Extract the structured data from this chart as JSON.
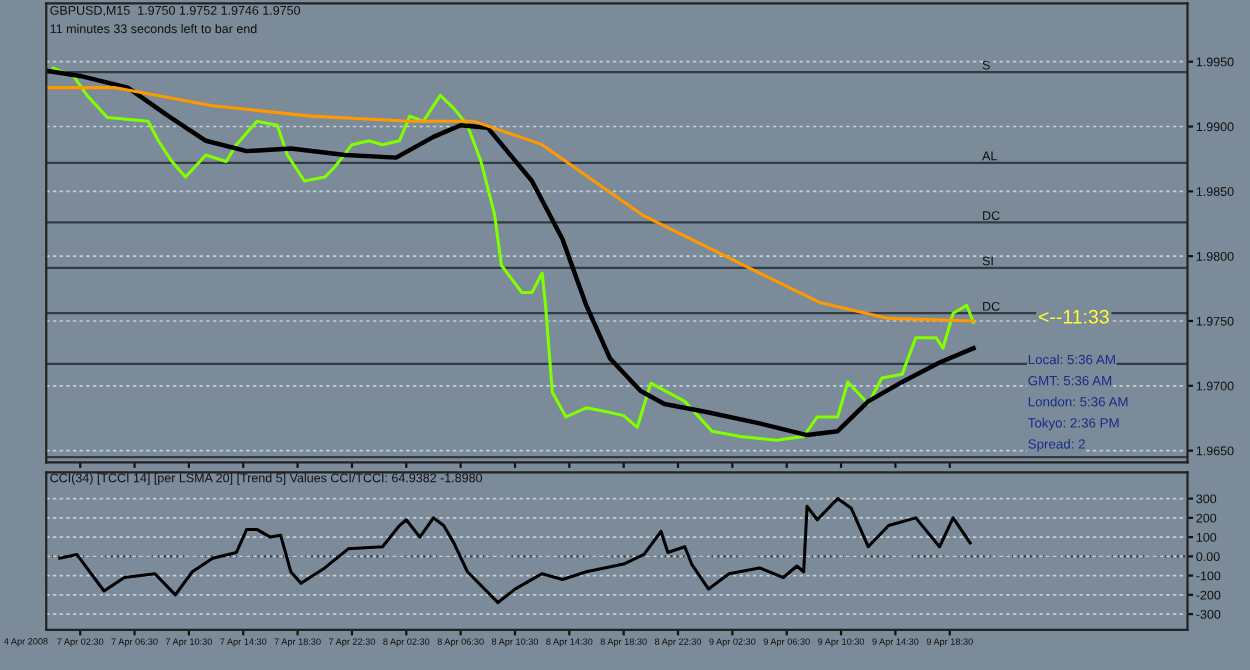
{
  "chart_data": [
    {
      "type": "line",
      "title": "GBPUSD,M15  1.9750 1.9752 1.9746 1.9750",
      "subtitle": "11 minutes 33 seconds left to bar end",
      "series": [
        {
          "color": "#7fff00",
          "x": [
            "2008-04-07T00:30",
            "2008-04-07T02:00",
            "2008-04-07T03:00",
            "2008-04-07T04:30",
            "2008-04-07T07:30",
            "2008-04-07T08:15",
            "2008-04-07T09:15",
            "2008-04-07T10:15",
            "2008-04-07T11:45",
            "2008-04-07T13:15",
            "2008-04-07T14:00",
            "2008-04-07T15:30",
            "2008-04-07T17:00",
            "2008-04-07T17:45",
            "2008-04-07T19:00",
            "2008-04-07T20:30",
            "2008-04-07T21:15",
            "2008-04-07T22:30",
            "2008-04-07T23:45",
            "2008-04-08T00:45",
            "2008-04-08T02:00",
            "2008-04-08T02:45",
            "2008-04-08T03:45",
            "2008-04-08T05:00",
            "2008-04-08T06:00",
            "2008-04-08T07:00",
            "2008-04-08T08:00",
            "2008-04-08T09:00",
            "2008-04-08T09:30",
            "2008-04-08T11:00",
            "2008-04-08T11:45",
            "2008-04-08T12:30",
            "2008-04-08T12:45",
            "2008-04-08T13:15",
            "2008-04-08T14:15",
            "2008-04-08T15:45",
            "2008-04-08T17:15",
            "2008-04-08T18:30",
            "2008-04-08T19:30",
            "2008-04-08T20:30",
            "2008-04-08T23:00",
            "2008-04-09T01:00",
            "2008-04-09T03:00",
            "2008-04-09T05:45",
            "2008-04-09T07:45",
            "2008-04-09T08:45",
            "2008-04-09T10:15",
            "2008-04-09T11:00",
            "2008-04-09T12:30",
            "2008-04-09T13:30",
            "2008-04-09T15:00",
            "2008-04-09T16:00",
            "2008-04-09T17:30",
            "2008-04-09T18:00",
            "2008-04-09T18:45",
            "2008-04-09T19:45",
            "2008-04-09T20:15"
          ],
          "values": [
            1.9945,
            1.9939,
            1.9924,
            1.9907,
            1.9904,
            1.9889,
            1.9873,
            1.9861,
            1.9878,
            1.9873,
            1.9886,
            1.9904,
            1.9901,
            1.9878,
            1.9858,
            1.9861,
            1.9869,
            1.9886,
            1.9889,
            1.9886,
            1.9889,
            1.9908,
            1.9904,
            1.9924,
            1.9914,
            1.9901,
            1.9873,
            1.9832,
            1.9793,
            1.9772,
            1.9772,
            1.9787,
            1.9762,
            1.9695,
            1.9676,
            1.9683,
            1.968,
            1.9677,
            1.9668,
            1.9702,
            1.9688,
            1.9665,
            1.9661,
            1.9658,
            1.9661,
            1.9676,
            1.9676,
            1.9703,
            1.9686,
            1.9706,
            1.9709,
            1.9737,
            1.9737,
            1.9729,
            1.9756,
            1.9762,
            1.9749
          ]
        },
        {
          "color": "#000000",
          "x": [
            "2008-04-07T00:00",
            "2008-04-07T02:30",
            "2008-04-07T06:00",
            "2008-04-07T09:00",
            "2008-04-07T11:45",
            "2008-04-07T14:45",
            "2008-04-07T18:00",
            "2008-04-07T22:00",
            "2008-04-08T01:45",
            "2008-04-08T04:30",
            "2008-04-08T06:30",
            "2008-04-08T08:30",
            "2008-04-08T11:45",
            "2008-04-08T14:00",
            "2008-04-08T15:45",
            "2008-04-08T17:30",
            "2008-04-08T19:45",
            "2008-04-08T21:30",
            "2008-04-09T00:30",
            "2008-04-09T04:30",
            "2008-04-09T08:00",
            "2008-04-09T10:15",
            "2008-04-09T12:30",
            "2008-04-09T15:00",
            "2008-04-09T17:45",
            "2008-04-09T20:15"
          ],
          "values": [
            1.9943,
            1.9939,
            1.993,
            1.9908,
            1.9889,
            1.9881,
            1.9883,
            1.9878,
            1.9876,
            1.9892,
            1.9901,
            1.9899,
            1.9858,
            1.9813,
            1.9762,
            1.9721,
            1.9696,
            1.9686,
            1.968,
            1.9671,
            1.9662,
            1.9665,
            1.9688,
            1.9703,
            1.9718,
            1.9729
          ]
        },
        {
          "color": "#ff9900",
          "x": [
            "2008-04-07T00:00",
            "2008-04-07T05:00",
            "2008-04-07T12:15",
            "2008-04-07T19:30",
            "2008-04-08T02:45",
            "2008-04-08T07:30",
            "2008-04-08T12:30",
            "2008-04-08T17:15",
            "2008-04-08T20:00",
            "2008-04-08T23:30",
            "2008-04-09T04:30",
            "2008-04-09T09:00",
            "2008-04-09T14:00",
            "2008-04-09T20:15"
          ],
          "values": [
            1.993,
            1.993,
            1.9916,
            1.9908,
            1.9904,
            1.9904,
            1.9886,
            1.9851,
            1.9831,
            1.9813,
            1.9787,
            1.9764,
            1.9752,
            1.975
          ]
        }
      ],
      "xlim": [
        "2008-04-07T00:00",
        "2008-04-10T12:00"
      ],
      "ylim": [
        1.9641,
        1.9995
      ],
      "xticks": [
        {
          "value": "2008-04-07T02:30",
          "label": null
        },
        {
          "value": "2008-04-07T06:30",
          "label": null
        },
        {
          "value": "2008-04-07T10:30",
          "label": null
        },
        {
          "value": "2008-04-07T14:30",
          "label": null
        },
        {
          "value": "2008-04-07T18:30",
          "label": null
        },
        {
          "value": "2008-04-07T22:30",
          "label": null
        },
        {
          "value": "2008-04-08T02:30",
          "label": null
        },
        {
          "value": "2008-04-08T06:30",
          "label": null
        },
        {
          "value": "2008-04-08T10:30",
          "label": null
        },
        {
          "value": "2008-04-08T14:30",
          "label": null
        },
        {
          "value": "2008-04-08T18:30",
          "label": null
        },
        {
          "value": "2008-04-08T22:30",
          "label": null
        },
        {
          "value": "2008-04-09T02:30",
          "label": null
        },
        {
          "value": "2008-04-09T06:30",
          "label": null
        },
        {
          "value": "2008-04-09T10:30",
          "label": null
        },
        {
          "value": "2008-04-09T14:30",
          "label": null
        },
        {
          "value": "2008-04-09T18:30",
          "label": null
        }
      ],
      "yticks": [
        {
          "value": 1.965,
          "label": "1.9650"
        },
        {
          "value": 1.97,
          "label": "1.9700"
        },
        {
          "value": 1.975,
          "label": "1.9750"
        },
        {
          "value": 1.98,
          "label": "1.9800"
        },
        {
          "value": 1.985,
          "label": "1.9850"
        },
        {
          "value": 1.99,
          "label": "1.9900"
        },
        {
          "value": 1.995,
          "label": "1.9950"
        }
      ],
      "tick_labels": "y",
      "ref_lines": [
        {
          "axis": "y",
          "value": 1.9942,
          "label": "S",
          "color": "#333c44"
        },
        {
          "axis": "y",
          "value": 1.9872,
          "label": "AL",
          "color": "#333c44"
        },
        {
          "axis": "y",
          "value": 1.9826,
          "label": "DC",
          "color": "#333c44"
        },
        {
          "axis": "y",
          "value": 1.9791,
          "label": "SI",
          "color": "#333c44"
        },
        {
          "axis": "y",
          "value": 1.9756,
          "label": "DC",
          "color": "#333c44"
        },
        {
          "axis": "y",
          "value": 1.9717,
          "color": "#333c44"
        },
        {
          "axis": "y",
          "value": 1.9645,
          "color": "#333c44"
        }
      ],
      "annotations": [
        {
          "text": "<--11:33",
          "x": "2008-04-10T01:00",
          "y": 1.9752
        },
        "Local: 5:36 AM",
        "GMT: 5:36 AM",
        "London: 5:36 AM",
        "Tokyo: 2:36 PM",
        "Spread: 2"
      ],
      "grid": "y",
      "line_style": "solid"
    },
    {
      "type": "line",
      "title": "CCI(34) [TCCI 14] [per LSMA 20] [Trend 5] Values CCI/TCCI: 64.9382 -1.8980",
      "series": [
        {
          "color": "#000000",
          "x": [
            "2008-04-07T01:00",
            "2008-04-07T02:15",
            "2008-04-07T04:15",
            "2008-04-07T05:45",
            "2008-04-07T08:00",
            "2008-04-07T09:30",
            "2008-04-07T10:45",
            "2008-04-07T12:15",
            "2008-04-07T14:00",
            "2008-04-07T14:45",
            "2008-04-07T15:30",
            "2008-04-07T16:30",
            "2008-04-07T17:15",
            "2008-04-07T18:00",
            "2008-04-07T18:45",
            "2008-04-07T20:30",
            "2008-04-07T22:15",
            "2008-04-08T00:45",
            "2008-04-08T02:00",
            "2008-04-08T02:30",
            "2008-04-08T03:30",
            "2008-04-08T04:30",
            "2008-04-08T05:15",
            "2008-04-08T06:00",
            "2008-04-08T07:00",
            "2008-04-08T09:15",
            "2008-04-08T10:30",
            "2008-04-08T12:30",
            "2008-04-08T14:00",
            "2008-04-08T15:45",
            "2008-04-08T18:30",
            "2008-04-08T20:00",
            "2008-04-08T21:15",
            "2008-04-08T21:45",
            "2008-04-08T23:00",
            "2008-04-08T23:30",
            "2008-04-09T00:45",
            "2008-04-09T02:15",
            "2008-04-09T04:30",
            "2008-04-09T06:15",
            "2008-04-09T07:15",
            "2008-04-09T07:45",
            "2008-04-09T08:00",
            "2008-04-09T08:45",
            "2008-04-09T10:15",
            "2008-04-09T11:15",
            "2008-04-09T12:30",
            "2008-04-09T14:00",
            "2008-04-09T16:00",
            "2008-04-09T17:45",
            "2008-04-09T18:45",
            "2008-04-09T20:00"
          ],
          "values": [
            -10,
            10,
            -180,
            -110,
            -90,
            -200,
            -80,
            -10,
            20,
            140,
            140,
            100,
            110,
            -80,
            -140,
            -60,
            40,
            50,
            160,
            190,
            100,
            200,
            160,
            70,
            -80,
            -240,
            -170,
            -90,
            -120,
            -80,
            -40,
            10,
            130,
            20,
            50,
            -40,
            -170,
            -90,
            -60,
            -110,
            -50,
            -80,
            260,
            190,
            300,
            250,
            50,
            160,
            200,
            50,
            200,
            70
          ]
        }
      ],
      "xlim": [
        "2008-04-07T00:00",
        "2008-04-10T12:00"
      ],
      "ylim": [
        -381.47,
        436.36
      ],
      "yticks": [
        {
          "value": 300,
          "label": "300"
        },
        {
          "value": 200,
          "label": "200"
        },
        {
          "value": 100,
          "label": "100"
        },
        {
          "value": 0,
          "label": "0.00"
        },
        {
          "value": -100,
          "label": "-100"
        },
        {
          "value": -200,
          "label": "-200"
        },
        {
          "value": -300,
          "label": "-300"
        }
      ],
      "xticks": [
        {
          "value": "2008-04-07T02:30",
          "label": "7 Apr 02:30"
        },
        {
          "value": "2008-04-07T06:30",
          "label": "7 Apr 06:30"
        },
        {
          "value": "2008-04-07T10:30",
          "label": "7 Apr 10:30"
        },
        {
          "value": "2008-04-07T14:30",
          "label": "7 Apr 14:30"
        },
        {
          "value": "2008-04-07T18:30",
          "label": "7 Apr 18:30"
        },
        {
          "value": "2008-04-07T22:30",
          "label": "7 Apr 22:30"
        },
        {
          "value": "2008-04-08T02:30",
          "label": "8 Apr 02:30"
        },
        {
          "value": "2008-04-08T06:30",
          "label": "8 Apr 06:30"
        },
        {
          "value": "2008-04-08T10:30",
          "label": "8 Apr 10:30"
        },
        {
          "value": "2008-04-08T14:30",
          "label": "8 Apr 14:30"
        },
        {
          "value": "2008-04-08T18:30",
          "label": "8 Apr 18:30"
        },
        {
          "value": "2008-04-08T22:30",
          "label": "8 Apr 22:30"
        },
        {
          "value": "2008-04-09T02:30",
          "label": "9 Apr 02:30"
        },
        {
          "value": "2008-04-09T06:30",
          "label": "9 Apr 06:30"
        },
        {
          "value": "2008-04-09T10:30",
          "label": "9 Apr 10:30"
        },
        {
          "value": "2008-04-09T14:30",
          "label": "9 Apr 14:30"
        },
        {
          "value": "2008-04-09T18:30",
          "label": "9 Apr 18:30"
        }
      ],
      "annotations": [
        "4 Apr 2008"
      ],
      "ref_lines": [
        {
          "axis": "y",
          "value": 0,
          "color": "#333c44",
          "line_style": "dotted"
        }
      ],
      "grid": "y",
      "line_style": "solid"
    }
  ]
}
